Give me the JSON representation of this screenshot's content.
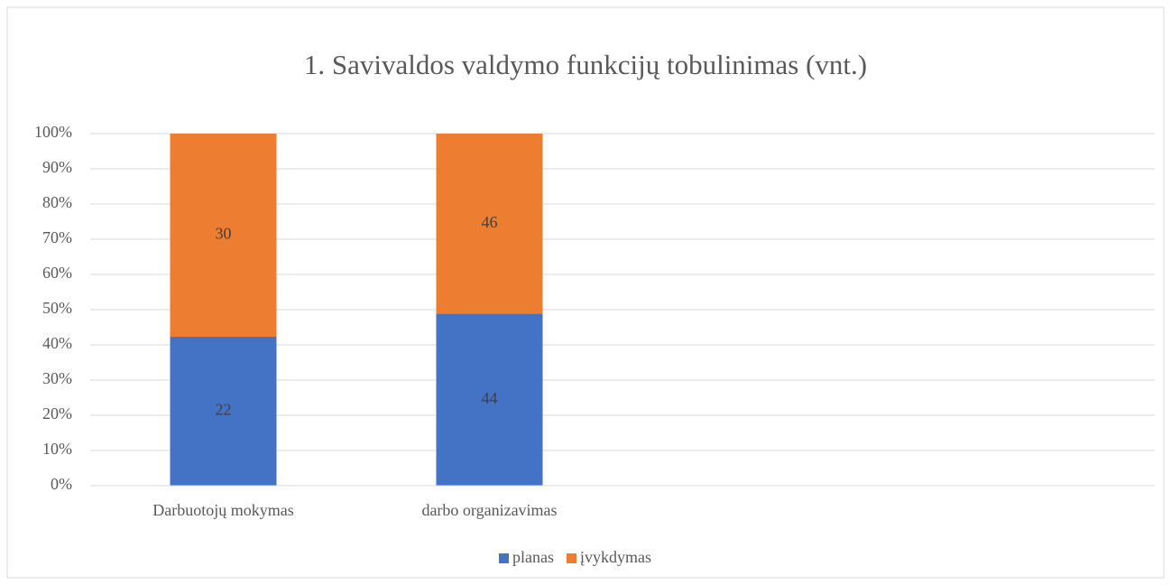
{
  "chart_data": {
    "type": "bar",
    "stacking": "percent",
    "title": "1. Savivaldos valdymo funkcijų tobulinimas (vnt.)",
    "categories": [
      "Darbuotojų mokymas",
      "darbo organizavimas",
      null,
      null
    ],
    "series": [
      {
        "name": "planas",
        "color": "#4472c4",
        "values": [
          22,
          44,
          null,
          null
        ]
      },
      {
        "name": "įvykdymas",
        "color": "#ed7d31",
        "values": [
          30,
          46,
          null,
          null
        ]
      }
    ],
    "ylim": [
      0,
      100
    ],
    "yticks": [
      {
        "value": 0,
        "label": "0%"
      },
      {
        "value": 10,
        "label": "10%"
      },
      {
        "value": 20,
        "label": "20%"
      },
      {
        "value": 30,
        "label": "30%"
      },
      {
        "value": 40,
        "label": "40%"
      },
      {
        "value": 50,
        "label": "50%"
      },
      {
        "value": 60,
        "label": "60%"
      },
      {
        "value": 70,
        "label": "70%"
      },
      {
        "value": 80,
        "label": "80%"
      },
      {
        "value": 90,
        "label": "90%"
      },
      {
        "value": 100,
        "label": "100%"
      }
    ],
    "grid": true,
    "legend": "bottom"
  }
}
